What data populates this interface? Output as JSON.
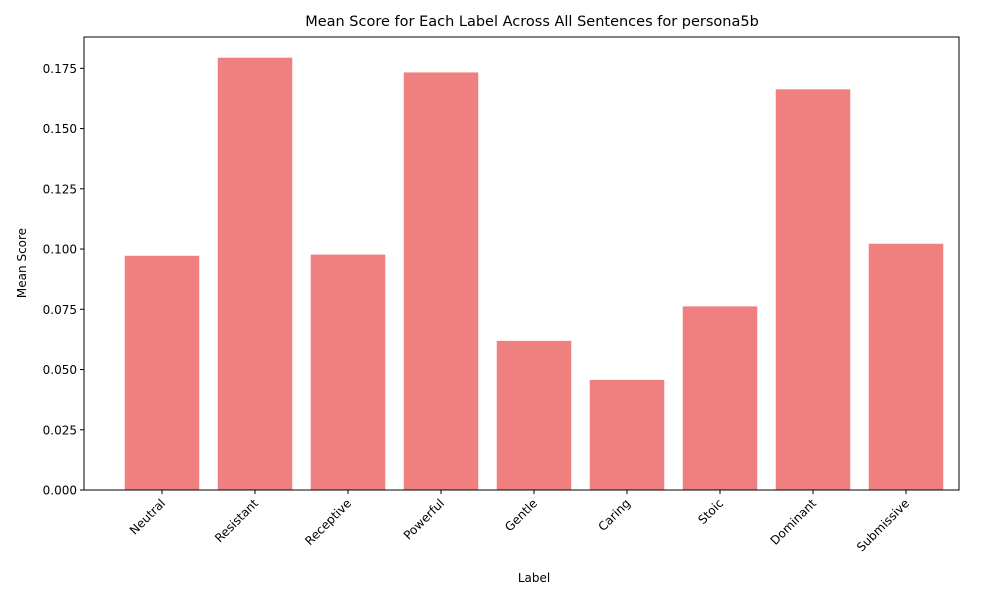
{
  "chart_data": {
    "type": "bar",
    "title": "Mean Score for Each Label Across All Sentences for persona5b",
    "xlabel": "Label",
    "ylabel": "Mean Score",
    "categories": [
      "Neutral",
      "Resistant",
      "Receptive",
      "Powerful",
      "Gentle",
      "Caring",
      "Stoic",
      "Dominant",
      "Submissive"
    ],
    "values": [
      0.0972,
      0.1794,
      0.0977,
      0.1733,
      0.0619,
      0.0457,
      0.0762,
      0.1663,
      0.1022
    ],
    "ylim": [
      0,
      0.188
    ],
    "yticks": [
      "0.000",
      "0.025",
      "0.050",
      "0.075",
      "0.100",
      "0.125",
      "0.150",
      "0.175"
    ],
    "bar_color": "#f08080",
    "grid": false,
    "legend": "none"
  }
}
